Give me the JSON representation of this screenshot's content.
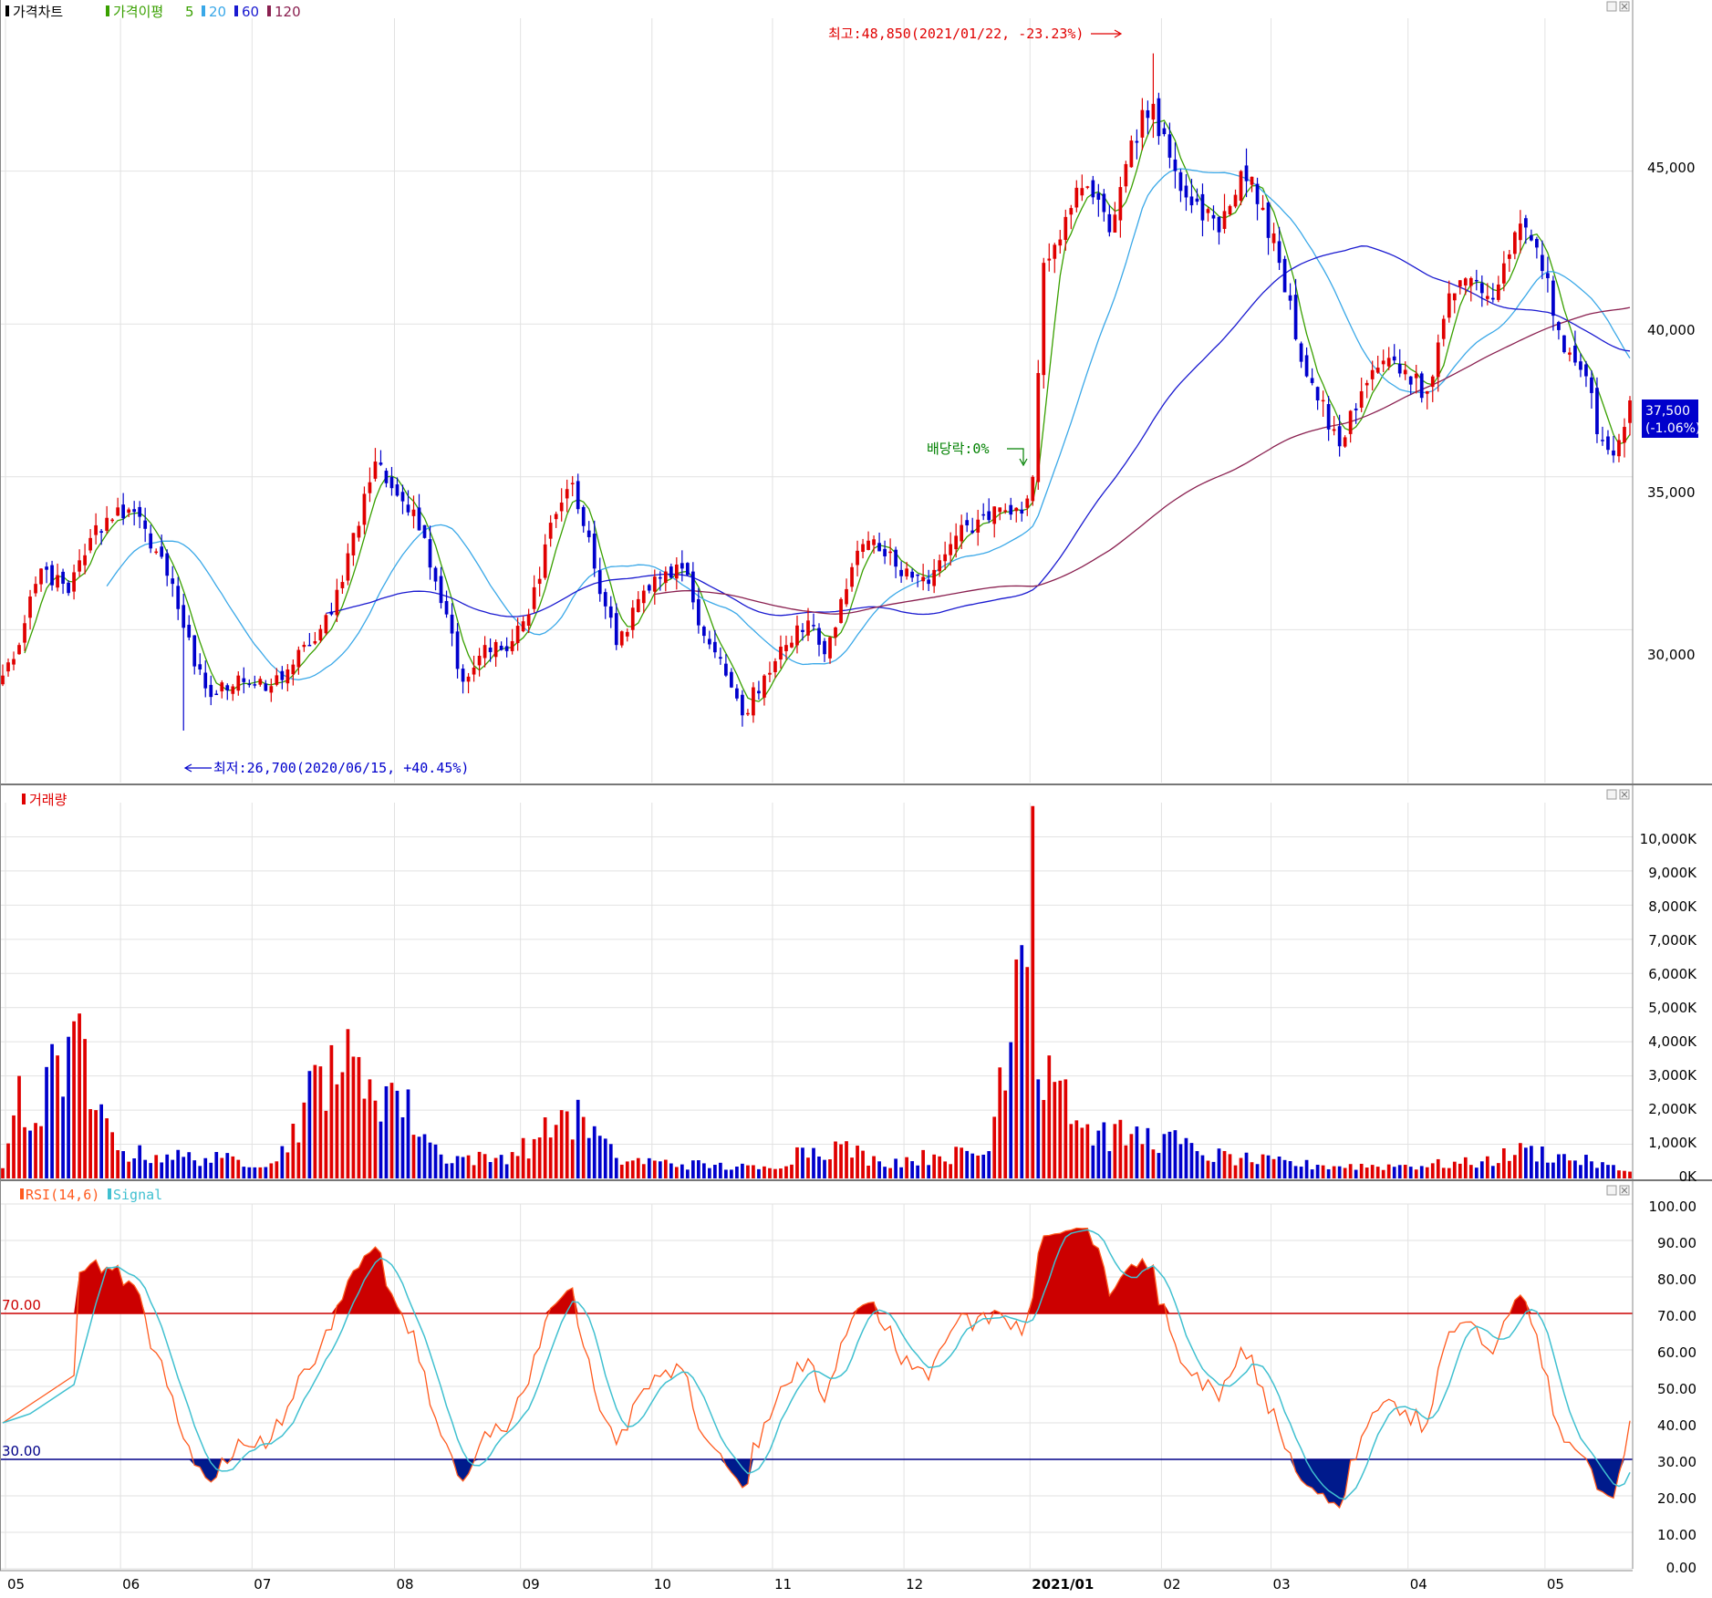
{
  "colors": {
    "up": "#e00000",
    "down": "#0000cc",
    "ma5": "#39a000",
    "ma20": "#3aa8e8",
    "ma60": "#1a1ad0",
    "ma120": "#8a2050",
    "rsi": "#ff5a1e",
    "signal": "#40c0d0",
    "grid": "#e2e2e2",
    "over_fill": "#cc0000",
    "under_fill": "#001a8c",
    "axis_text": "#000000",
    "current_box": "#0000cc"
  },
  "icons": {
    "pane_buttons": [
      "minimize-icon",
      "close-icon"
    ],
    "legend_marker": "square-marker-icon"
  },
  "price_pane": {
    "legend": {
      "title": "가격차트",
      "ma_label": "가격이평",
      "ma5": "5",
      "ma20": "20",
      "ma60": "60",
      "ma120": "120"
    },
    "high_annotation": "최고:48,850(2021/01/22, -23.23%)",
    "low_annotation": "최저:26,700(2020/06/15, +40.45%)",
    "dividend_annotation": "배당락:0%",
    "current_price": "37,500",
    "current_change": "(-1.06%)",
    "y_ticks": [
      "45,000",
      "40,000",
      "35,000",
      "30,000"
    ]
  },
  "volume_pane": {
    "legend": {
      "title": "거래량"
    },
    "y_ticks": [
      "10,000K",
      "9,000K",
      "8,000K",
      "7,000K",
      "6,000K",
      "5,000K",
      "4,000K",
      "3,000K",
      "2,000K",
      "1,000K",
      "0K"
    ]
  },
  "rsi_pane": {
    "legend": {
      "rsi": "RSI(14,6)",
      "signal": "Signal"
    },
    "level_70": "70.00",
    "level_30": "30.00",
    "y_ticks": [
      "100.00",
      "90.00",
      "80.00",
      "70.00",
      "60.00",
      "50.00",
      "40.00",
      "30.00",
      "20.00",
      "10.00",
      "0.00"
    ]
  },
  "x_axis": {
    "labels": [
      "05",
      "06",
      "07",
      "08",
      "09",
      "10",
      "11",
      "12",
      "2021/01",
      "02",
      "03",
      "04",
      "05"
    ]
  },
  "chart_data": {
    "type": "candlestick",
    "price_axis": {
      "min": 25000,
      "max": 50000,
      "ticks": [
        30000,
        35000,
        40000,
        45000
      ]
    },
    "volume_axis": {
      "min": 0,
      "max": 11000,
      "unit": "K"
    },
    "rsi_axis": {
      "min": 0,
      "max": 100,
      "overbought": 70,
      "oversold": 30
    },
    "high": {
      "value": 48850,
      "date": "2021/01/22",
      "change_pct": -23.23
    },
    "low": {
      "value": 26700,
      "date": "2020/06/15",
      "change_pct": 40.45
    },
    "last": {
      "value": 37500,
      "change_pct": -1.06
    },
    "price_anchors": [
      [
        0,
        28500
      ],
      [
        3,
        29500
      ],
      [
        7,
        32000
      ],
      [
        12,
        31200
      ],
      [
        16,
        33000
      ],
      [
        21,
        34000
      ],
      [
        26,
        33300
      ],
      [
        31,
        31500
      ],
      [
        35,
        28800
      ],
      [
        38,
        27800
      ],
      [
        43,
        28500
      ],
      [
        48,
        28000
      ],
      [
        52,
        28700
      ],
      [
        56,
        29500
      ],
      [
        60,
        30500
      ],
      [
        63,
        32500
      ],
      [
        68,
        35500
      ],
      [
        73,
        34200
      ],
      [
        77,
        33000
      ],
      [
        81,
        30500
      ],
      [
        84,
        28300
      ],
      [
        88,
        29500
      ],
      [
        92,
        29300
      ],
      [
        96,
        30500
      ],
      [
        100,
        33500
      ],
      [
        104,
        34800
      ],
      [
        108,
        32000
      ],
      [
        112,
        29500
      ],
      [
        116,
        31000
      ],
      [
        120,
        31700
      ],
      [
        124,
        32000
      ],
      [
        128,
        29800
      ],
      [
        132,
        28500
      ],
      [
        135,
        27200
      ],
      [
        139,
        28500
      ],
      [
        143,
        29500
      ],
      [
        147,
        30300
      ],
      [
        150,
        29200
      ],
      [
        153,
        31000
      ],
      [
        157,
        32800
      ],
      [
        161,
        32400
      ],
      [
        165,
        32000
      ],
      [
        169,
        31500
      ],
      [
        173,
        32800
      ],
      [
        178,
        33600
      ],
      [
        182,
        34000
      ],
      [
        186,
        33800
      ],
      [
        188,
        35000
      ],
      [
        190,
        42000
      ],
      [
        194,
        43500
      ],
      [
        198,
        44500
      ],
      [
        202,
        43000
      ],
      [
        206,
        46000
      ],
      [
        210,
        47200
      ],
      [
        214,
        45000
      ],
      [
        218,
        44000
      ],
      [
        222,
        43000
      ],
      [
        226,
        45000
      ],
      [
        230,
        43800
      ],
      [
        233,
        42000
      ],
      [
        236,
        39500
      ],
      [
        240,
        37500
      ],
      [
        244,
        36000
      ],
      [
        248,
        37800
      ],
      [
        252,
        38800
      ],
      [
        256,
        38500
      ],
      [
        260,
        37800
      ],
      [
        264,
        41000
      ],
      [
        268,
        41500
      ],
      [
        272,
        40800
      ],
      [
        276,
        43000
      ],
      [
        280,
        42500
      ],
      [
        284,
        39800
      ],
      [
        288,
        38500
      ],
      [
        292,
        36200
      ],
      [
        294,
        35700
      ],
      [
        297,
        37500
      ]
    ],
    "volume_anchors": [
      [
        0,
        300
      ],
      [
        3,
        3000
      ],
      [
        5,
        1400
      ],
      [
        10,
        3600
      ],
      [
        13,
        4600
      ],
      [
        17,
        2000
      ],
      [
        22,
        800
      ],
      [
        30,
        700
      ],
      [
        40,
        600
      ],
      [
        50,
        500
      ],
      [
        60,
        3900
      ],
      [
        67,
        2900
      ],
      [
        71,
        2800
      ],
      [
        80,
        700
      ],
      [
        90,
        600
      ],
      [
        98,
        1200
      ],
      [
        102,
        2000
      ],
      [
        106,
        1800
      ],
      [
        112,
        600
      ],
      [
        120,
        500
      ],
      [
        130,
        400
      ],
      [
        140,
        300
      ],
      [
        146,
        900
      ],
      [
        153,
        1000
      ],
      [
        160,
        500
      ],
      [
        170,
        700
      ],
      [
        180,
        800
      ],
      [
        188,
        10900
      ],
      [
        189,
        2900
      ],
      [
        191,
        3600
      ],
      [
        194,
        2900
      ],
      [
        196,
        1700
      ],
      [
        200,
        1400
      ],
      [
        206,
        1300
      ],
      [
        212,
        1300
      ],
      [
        218,
        800
      ],
      [
        226,
        600
      ],
      [
        240,
        400
      ],
      [
        256,
        400
      ],
      [
        270,
        500
      ],
      [
        278,
        900
      ],
      [
        290,
        500
      ],
      [
        297,
        200
      ]
    ],
    "volume_up_indices": [
      3,
      10,
      13,
      17,
      60,
      67,
      71,
      102,
      106,
      188,
      191,
      194
    ],
    "volume_down_indices": [
      5,
      189
    ],
    "volume_grid_k": [
      0,
      1000,
      2000,
      3000,
      4000,
      5000,
      6000,
      7000,
      8000,
      9000,
      10000
    ],
    "moving_averages": [
      {
        "name": "5",
        "period": 5
      },
      {
        "name": "20",
        "period": 20
      },
      {
        "name": "60",
        "period": 60
      },
      {
        "name": "120",
        "period": 120
      }
    ],
    "rsi": {
      "name": "RSI(14,6)",
      "period": 14,
      "signal_period": 6,
      "signal_name": "Signal"
    },
    "month_boundaries": [
      1,
      22,
      46,
      72,
      95,
      119,
      141,
      165,
      188,
      212,
      232,
      257,
      282
    ]
  }
}
